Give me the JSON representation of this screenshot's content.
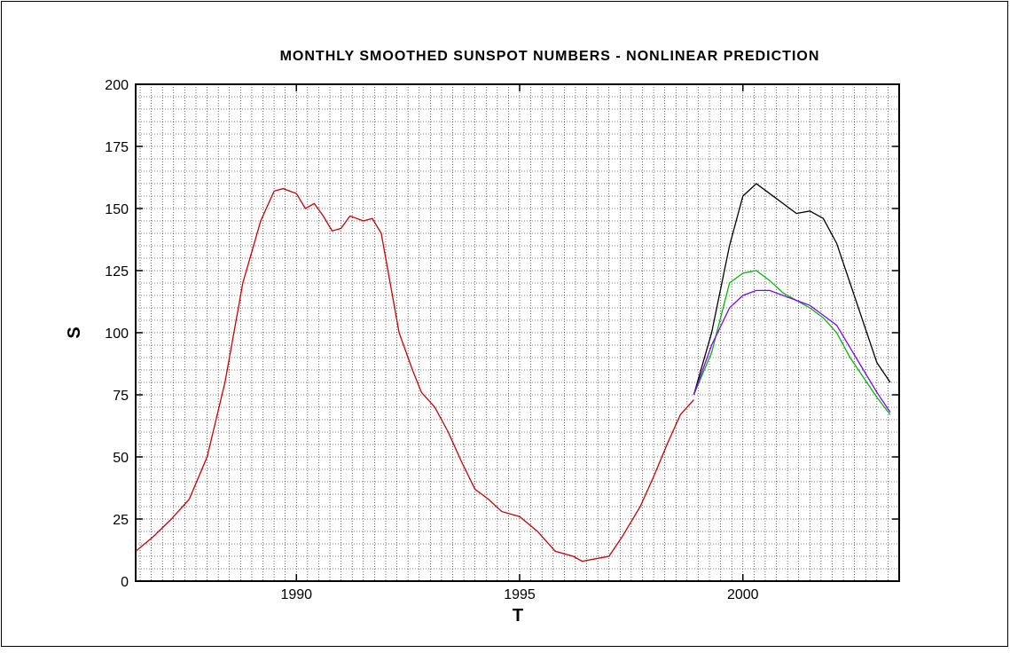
{
  "chart_data": {
    "type": "line",
    "title": "MONTHLY  SMOOTHED SUNSPOT NUMBERS - NONLINEAR PREDICTION",
    "x_label": "T",
    "y_label": "S",
    "xlim": [
      1986.4,
      2003.5
    ],
    "ylim": [
      0,
      200
    ],
    "xticks": [
      1990,
      1995,
      2000
    ],
    "yticks": [
      0,
      25,
      50,
      75,
      100,
      125,
      150,
      175,
      200
    ],
    "grid": true,
    "minor_grid": {
      "x": 0.25,
      "y": 5
    },
    "series": [
      {
        "color": "#cc0000",
        "x": [
          1986.4,
          1986.8,
          1987.2,
          1987.6,
          1988.0,
          1988.4,
          1988.8,
          1989.2,
          1989.5,
          1989.7,
          1990.0,
          1990.2,
          1990.4,
          1990.6,
          1990.8,
          1991.0,
          1991.2,
          1991.5,
          1991.7,
          1991.9,
          1992.1,
          1992.3,
          1992.6,
          1992.8,
          1993.1,
          1993.4,
          1993.7,
          1994.0,
          1994.3,
          1994.6,
          1995.0,
          1995.4,
          1995.8,
          1996.2,
          1996.4,
          1996.7,
          1997.0,
          1997.3,
          1997.7,
          1998.0,
          1998.3,
          1998.6,
          1998.9
        ],
        "values": [
          12,
          18,
          25,
          33,
          50,
          80,
          120,
          145,
          157,
          158,
          156,
          150,
          152,
          147,
          141,
          142,
          147,
          145,
          146,
          140,
          120,
          100,
          85,
          76,
          70,
          60,
          48,
          37,
          33,
          28,
          26,
          20,
          12,
          10,
          8,
          9,
          10,
          18,
          30,
          42,
          55,
          67,
          73
        ]
      },
      {
        "color": "#000000",
        "x": [
          1998.9,
          1999.3,
          1999.7,
          2000.0,
          2000.3,
          2000.6,
          2000.9,
          2001.2,
          2001.5,
          2001.8,
          2002.1,
          2002.4,
          2002.7,
          2003.0,
          2003.3
        ],
        "values": [
          75,
          100,
          135,
          155,
          160,
          156,
          152,
          148,
          149,
          146,
          136,
          120,
          104,
          88,
          80
        ]
      },
      {
        "color": "#00bb00",
        "x": [
          1998.9,
          1999.3,
          1999.7,
          2000.0,
          2000.3,
          2000.6,
          2000.9,
          2001.2,
          2001.5,
          2001.8,
          2002.1,
          2002.4,
          2002.7,
          2003.0,
          2003.3
        ],
        "values": [
          75,
          92,
          120,
          124,
          125,
          121,
          116,
          113,
          110,
          106,
          100,
          90,
          82,
          74,
          67
        ]
      },
      {
        "color": "#8800ff",
        "x": [
          1998.9,
          1999.3,
          1999.7,
          2000.0,
          2000.3,
          2000.6,
          2000.9,
          2001.2,
          2001.5,
          2001.8,
          2002.1,
          2002.4,
          2002.7,
          2003.0,
          2003.3
        ],
        "values": [
          75,
          95,
          110,
          115,
          117,
          117,
          115,
          113,
          111,
          107,
          103,
          94,
          85,
          76,
          68
        ]
      }
    ]
  }
}
